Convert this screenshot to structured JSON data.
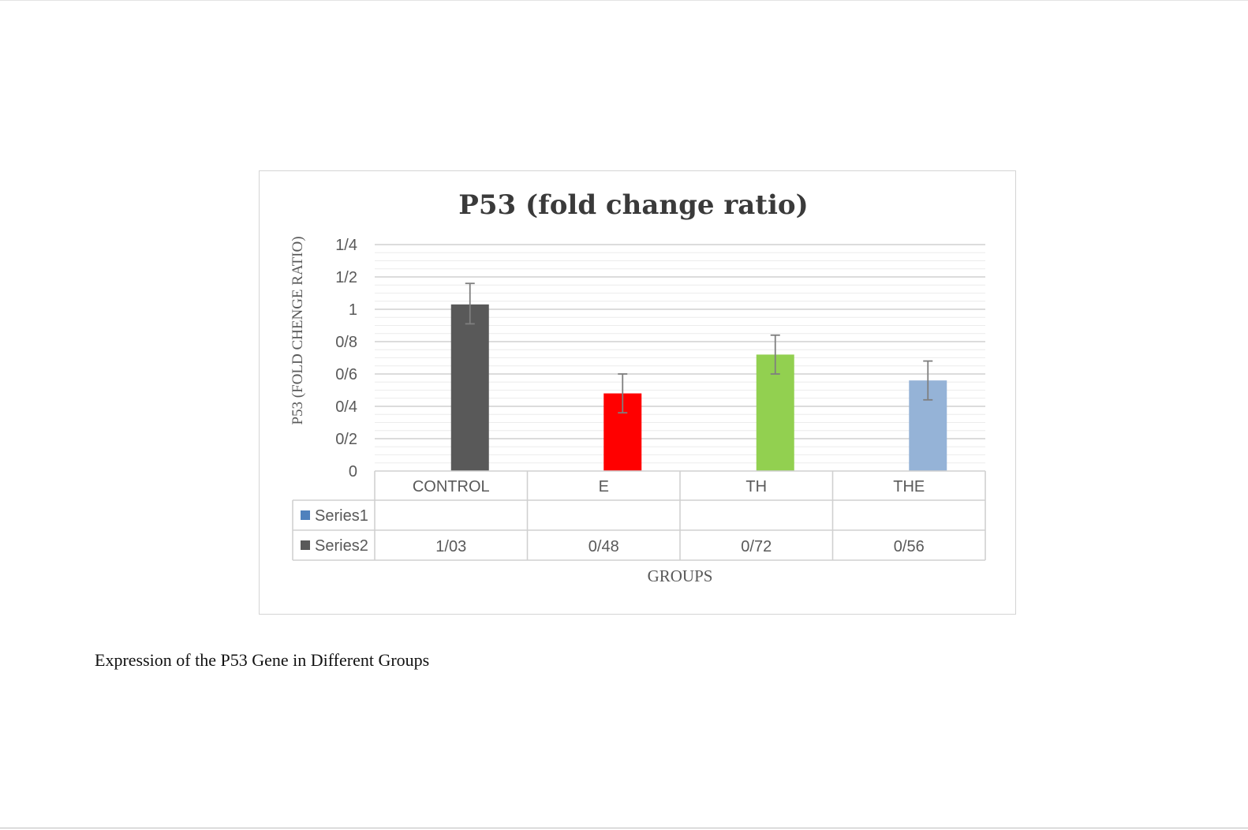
{
  "chart_data": {
    "type": "bar",
    "title": "P53 (fold change ratio)",
    "xlabel": "GROUPS",
    "ylabel": "P53  (FOLD CHENGE RATIO)",
    "categories": [
      "CONTROL",
      "E",
      "TH",
      "THE"
    ],
    "values": [
      1.03,
      0.48,
      0.72,
      0.56
    ],
    "value_labels": [
      "1/03",
      "0/48",
      "0/72",
      "0/56"
    ],
    "error_bars": [
      {
        "low": 0.91,
        "high": 1.16
      },
      {
        "low": 0.36,
        "high": 0.6
      },
      {
        "low": 0.6,
        "high": 0.84
      },
      {
        "low": 0.44,
        "high": 0.68
      }
    ],
    "bar_colors": [
      "#595959",
      "#ff0000",
      "#92d050",
      "#95b3d7"
    ],
    "yticks": [
      0,
      0.2,
      0.4,
      0.6,
      0.8,
      1,
      1.2,
      1.4
    ],
    "ytick_labels": [
      "0",
      "0/2",
      "0/4",
      "0/6",
      "0/8",
      "1",
      "1/2",
      "1/4"
    ],
    "ylim": [
      0,
      1.4
    ],
    "grid": true,
    "data_table": {
      "rows": [
        {
          "name": "Series1",
          "color": "#4f81bd",
          "cells": [
            "",
            "",
            "",
            ""
          ]
        },
        {
          "name": "Series2",
          "color": "#595959",
          "cells": [
            "1/03",
            "0/48",
            "0/72",
            "0/56"
          ]
        }
      ]
    }
  },
  "caption": "Expression of the P53 Gene in Different Groups"
}
